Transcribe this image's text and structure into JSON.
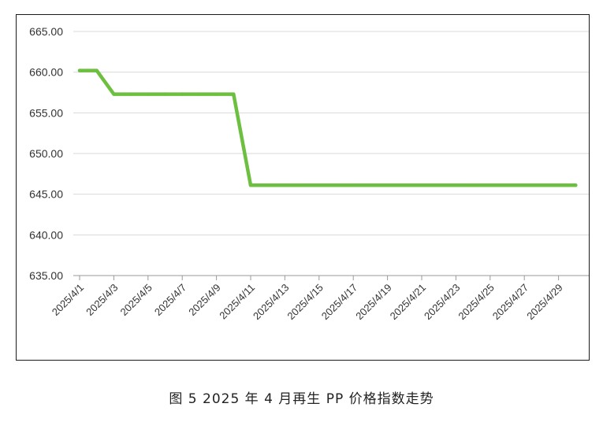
{
  "chart_data": {
    "type": "line",
    "x": [
      "2025/4/1",
      "2025/4/2",
      "2025/4/3",
      "2025/4/4",
      "2025/4/5",
      "2025/4/6",
      "2025/4/7",
      "2025/4/8",
      "2025/4/9",
      "2025/4/10",
      "2025/4/11",
      "2025/4/12",
      "2025/4/13",
      "2025/4/14",
      "2025/4/15",
      "2025/4/16",
      "2025/4/17",
      "2025/4/18",
      "2025/4/19",
      "2025/4/20",
      "2025/4/21",
      "2025/4/22",
      "2025/4/23",
      "2025/4/24",
      "2025/4/25",
      "2025/4/26",
      "2025/4/27",
      "2025/4/28",
      "2025/4/29",
      "2025/4/30"
    ],
    "x_tick_labels": [
      "2025/4/1",
      "2025/4/3",
      "2025/4/5",
      "2025/4/7",
      "2025/4/9",
      "2025/4/11",
      "2025/4/13",
      "2025/4/15",
      "2025/4/17",
      "2025/4/19",
      "2025/4/21",
      "2025/4/23",
      "2025/4/25",
      "2025/4/27",
      "2025/4/29"
    ],
    "series": [
      {
        "values": [
          660.2,
          660.2,
          657.3,
          657.3,
          657.3,
          657.3,
          657.3,
          657.3,
          657.3,
          657.3,
          646.1,
          646.1,
          646.1,
          646.1,
          646.1,
          646.1,
          646.1,
          646.1,
          646.1,
          646.1,
          646.1,
          646.1,
          646.1,
          646.1,
          646.1,
          646.1,
          646.1,
          646.1,
          646.1,
          646.1
        ]
      }
    ],
    "y_ticks": [
      "635.00",
      "640.00",
      "645.00",
      "650.00",
      "655.00",
      "660.00",
      "665.00"
    ],
    "ylim": [
      635,
      665
    ],
    "grid": true,
    "line_color": "#6cbf3f"
  },
  "caption": "图 5  2025 年 4 月再生 PP 价格指数走势"
}
